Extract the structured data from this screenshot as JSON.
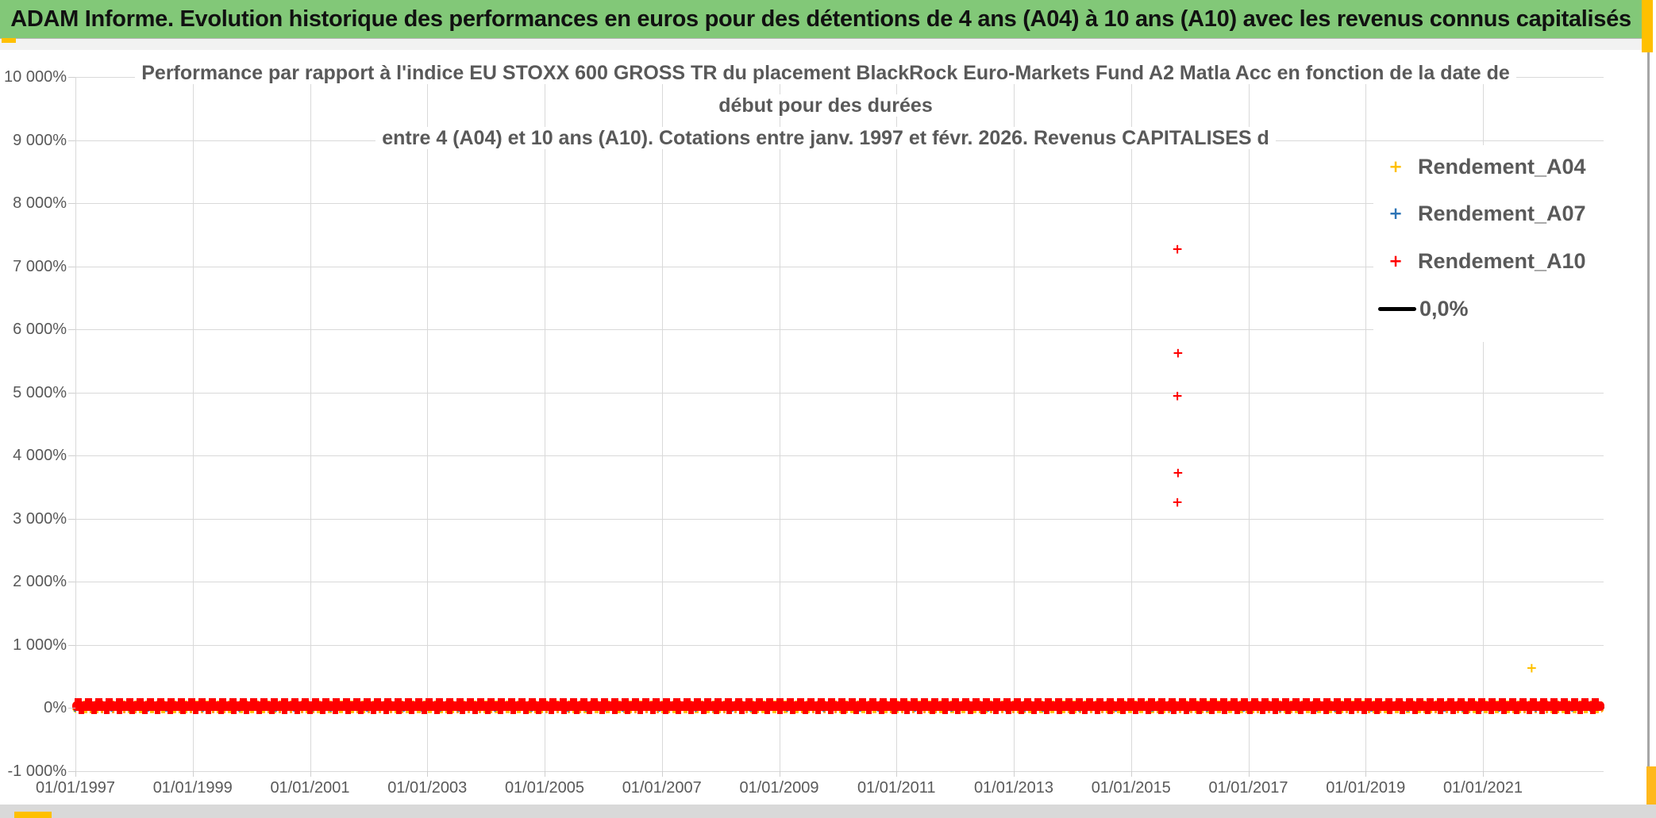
{
  "banner": {
    "title": "ADAM Informe. Evolution historique des performances en euros pour des détentions de 4 ans (A04) à 10 ans (A10) avec les revenus connus capitalisés"
  },
  "chart_data": {
    "type": "scatter",
    "title_lines": [
      "Performance par rapport à l'indice EU STOXX 600 GROSS TR  du placement BlackRock Euro-Markets Fund A2 Matla Acc en fonction de la date de",
      "début pour des durées",
      "entre 4 (A04) et 10 ans (A10). Cotations entre janv. 1997 et févr. 2026. Revenus CAPITALISES d"
    ],
    "grid": true,
    "legend_position": "inside-top-right",
    "y_axis": {
      "format": "percent",
      "lim_pct": [
        -1000,
        10000
      ],
      "tick_values_pct": [
        10000,
        9000,
        8000,
        7000,
        6000,
        5000,
        4000,
        3000,
        2000,
        1000,
        0,
        -1000
      ],
      "tick_labels": [
        "10 000%",
        "9 000%",
        "8 000%",
        "7 000%",
        "6 000%",
        "5 000%",
        "4 000%",
        "3 000%",
        "2 000%",
        "1 000%",
        "0%",
        "-1 000%"
      ]
    },
    "x_axis": {
      "lim_years": [
        1997.0,
        2023.05
      ],
      "tick_years": [
        1997,
        1999,
        2001,
        2003,
        2005,
        2007,
        2009,
        2011,
        2013,
        2015,
        2017,
        2019,
        2021
      ],
      "tick_labels": [
        "01/01/1997",
        "01/01/1999",
        "01/01/2001",
        "01/01/2003",
        "01/01/2005",
        "01/01/2007",
        "01/01/2009",
        "01/01/2011",
        "01/01/2013",
        "01/01/2015",
        "01/01/2017",
        "01/01/2019",
        "01/01/2021"
      ]
    },
    "legend": [
      {
        "label": "Rendement_A04",
        "color": "#FFC000",
        "marker": "plus"
      },
      {
        "label": "Rendement_A07",
        "color": "#2E75B6",
        "marker": "plus"
      },
      {
        "label": "Rendement_A10",
        "color": "#FF0000",
        "marker": "plus"
      },
      {
        "label": "0,0%",
        "color": "#000000",
        "marker": "line"
      }
    ],
    "series": [
      {
        "name": "Rendement_A04",
        "color": "#FFC000",
        "marker": "plus",
        "dense_band": {
          "x_years": [
            1997.0,
            2023.0
          ],
          "y_pct_range": [
            -60,
            40
          ]
        },
        "outliers": [
          {
            "x_year": 2021.83,
            "y_pct": 620
          }
        ]
      },
      {
        "name": "Rendement_A07",
        "color": "#2E75B6",
        "marker": "plus",
        "dense_band": {
          "x_years": [
            1997.0,
            2023.0
          ],
          "y_pct_range": [
            -50,
            60
          ]
        },
        "outliers": []
      },
      {
        "name": "Rendement_A10",
        "color": "#FF0000",
        "marker": "plus",
        "dense_band": {
          "x_years": [
            1997.0,
            2023.0
          ],
          "y_pct_range": [
            -40,
            60
          ]
        },
        "outliers": [
          {
            "x_year": 2015.79,
            "y_pct": 7260
          },
          {
            "x_year": 2015.8,
            "y_pct": 5610
          },
          {
            "x_year": 2015.79,
            "y_pct": 4940
          },
          {
            "x_year": 2015.8,
            "y_pct": 3710
          },
          {
            "x_year": 2015.79,
            "y_pct": 3250
          }
        ]
      },
      {
        "name": "0,0%",
        "color": "#000000",
        "marker": "line",
        "line_y_pct": 0
      }
    ]
  }
}
